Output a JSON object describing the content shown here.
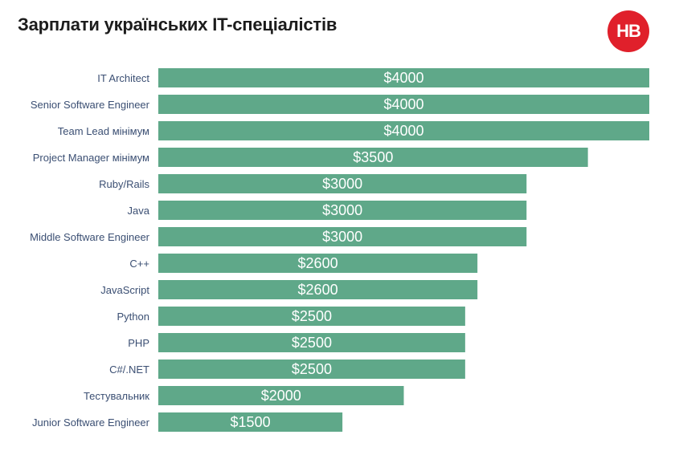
{
  "header": {
    "title": "Зарплати українських IT-спеціалістів",
    "logo_text": "НВ"
  },
  "colors": {
    "bar": "#5fa889",
    "title": "#1c1c1c",
    "label": "#3b4f73",
    "logo": "#e0202b"
  },
  "chart_data": {
    "type": "bar",
    "orientation": "horizontal",
    "title": "Зарплати українських IT-спеціалістів",
    "xlabel": "",
    "ylabel": "",
    "xlim": [
      0,
      4000
    ],
    "grid": false,
    "legend": "none",
    "categories": [
      "IT Architect",
      "Senior Software Engineer",
      "Team Lead мінімум",
      "Project Manager мінімум",
      "Ruby/Rails",
      "Java",
      "Middle Software Engineer",
      "C++",
      "JavaScript",
      "Python",
      "PHP",
      "C#/.NET",
      "Тестувальник",
      "Junior Software Engineer"
    ],
    "values": [
      4000,
      4000,
      4000,
      3500,
      3000,
      3000,
      3000,
      2600,
      2600,
      2500,
      2500,
      2500,
      2000,
      1500
    ],
    "value_labels": [
      "$4000",
      "$4000",
      "$4000",
      "$3500",
      "$3000",
      "$3000",
      "$3000",
      "$2600",
      "$2600",
      "$2500",
      "$2500",
      "$2500",
      "$2000",
      "$1500"
    ]
  }
}
